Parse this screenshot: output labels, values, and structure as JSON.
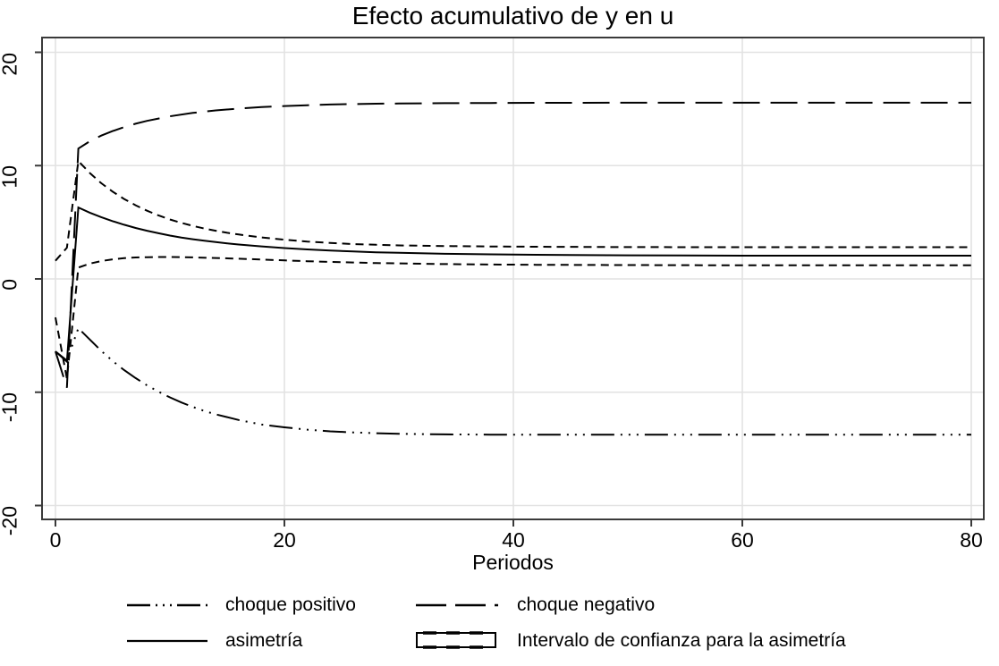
{
  "title": "Efecto acumulativo de y en u",
  "x_axis": {
    "label": "Periodos",
    "ticks": [
      0,
      20,
      40,
      60,
      80
    ],
    "range": [
      0,
      80
    ]
  },
  "y_axis": {
    "ticks": [
      -20,
      -10,
      0,
      10,
      20
    ],
    "range": [
      -20,
      20
    ]
  },
  "colors": {
    "line": "#000000",
    "grid": "#e2e2e2",
    "frame": "#3a3a3a",
    "background": "#ffffff",
    "text": "#000000"
  },
  "legend": [
    {
      "label": "choque positivo",
      "style": "dash_dot_dot"
    },
    {
      "label": "choque negativo",
      "style": "long_dash"
    },
    {
      "label": "asimetría",
      "style": "solid"
    },
    {
      "label": "Intervalo de confianza para la asimetría",
      "style": "ci_box"
    }
  ],
  "chart_data": {
    "type": "line",
    "title": "Efecto acumulativo de y en u",
    "xlabel": "Periodos",
    "ylabel": "",
    "xlim": [
      0,
      80
    ],
    "ylim": [
      -20,
      20
    ],
    "grid": true,
    "legend_position": "bottom",
    "series": [
      {
        "name": "choque positivo",
        "dash": "dash_dot_dot",
        "points": [
          [
            0,
            -6.4
          ],
          [
            1,
            -7.2
          ],
          [
            2,
            -4.35
          ],
          [
            3,
            -5.35
          ],
          [
            4,
            -6.35
          ],
          [
            5,
            -7.25
          ],
          [
            6,
            -8.05
          ],
          [
            7,
            -8.75
          ],
          [
            8,
            -9.4
          ],
          [
            9,
            -9.95
          ],
          [
            10,
            -10.45
          ],
          [
            11,
            -10.9
          ],
          [
            12,
            -11.3
          ],
          [
            13,
            -11.65
          ],
          [
            14,
            -11.95
          ],
          [
            15,
            -12.2
          ],
          [
            16,
            -12.45
          ],
          [
            18,
            -12.85
          ],
          [
            20,
            -13.1
          ],
          [
            22,
            -13.3
          ],
          [
            24,
            -13.45
          ],
          [
            26,
            -13.55
          ],
          [
            28,
            -13.62
          ],
          [
            30,
            -13.67
          ],
          [
            34,
            -13.72
          ],
          [
            38,
            -13.74
          ],
          [
            45,
            -13.75
          ],
          [
            55,
            -13.75
          ],
          [
            65,
            -13.75
          ],
          [
            80,
            -13.75
          ]
        ]
      },
      {
        "name": "choque negativo",
        "dash": "long_dash",
        "points": [
          [
            0,
            -6.4
          ],
          [
            1,
            -9.6
          ],
          [
            2,
            11.5
          ],
          [
            3,
            12.15
          ],
          [
            4,
            12.65
          ],
          [
            5,
            13.05
          ],
          [
            6,
            13.4
          ],
          [
            7,
            13.7
          ],
          [
            8,
            13.95
          ],
          [
            9,
            14.15
          ],
          [
            10,
            14.35
          ],
          [
            12,
            14.65
          ],
          [
            14,
            14.87
          ],
          [
            16,
            15.03
          ],
          [
            18,
            15.16
          ],
          [
            20,
            15.26
          ],
          [
            22,
            15.33
          ],
          [
            24,
            15.39
          ],
          [
            26,
            15.43
          ],
          [
            28,
            15.46
          ],
          [
            30,
            15.48
          ],
          [
            34,
            15.51
          ],
          [
            38,
            15.53
          ],
          [
            42,
            15.54
          ],
          [
            50,
            15.55
          ],
          [
            60,
            15.55
          ],
          [
            70,
            15.55
          ],
          [
            80,
            15.55
          ]
        ]
      },
      {
        "name": "asimetría",
        "dash": "solid",
        "points": [
          [
            0,
            -6.4
          ],
          [
            1,
            -7.3
          ],
          [
            2,
            6.3
          ],
          [
            3,
            5.85
          ],
          [
            4,
            5.45
          ],
          [
            5,
            5.1
          ],
          [
            6,
            4.78
          ],
          [
            7,
            4.5
          ],
          [
            8,
            4.25
          ],
          [
            9,
            4.03
          ],
          [
            10,
            3.83
          ],
          [
            11,
            3.65
          ],
          [
            12,
            3.5
          ],
          [
            13,
            3.37
          ],
          [
            14,
            3.25
          ],
          [
            15,
            3.14
          ],
          [
            16,
            3.04
          ],
          [
            18,
            2.87
          ],
          [
            20,
            2.72
          ],
          [
            22,
            2.6
          ],
          [
            24,
            2.5
          ],
          [
            26,
            2.42
          ],
          [
            28,
            2.35
          ],
          [
            30,
            2.3
          ],
          [
            34,
            2.22
          ],
          [
            38,
            2.17
          ],
          [
            42,
            2.13
          ],
          [
            50,
            2.08
          ],
          [
            60,
            2.05
          ],
          [
            70,
            2.05
          ],
          [
            80,
            2.05
          ]
        ]
      },
      {
        "name": "intervalo de confianza superior",
        "dash": "short_dash",
        "points": [
          [
            0,
            1.6
          ],
          [
            1,
            2.75
          ],
          [
            2,
            10.4
          ],
          [
            3,
            9.35
          ],
          [
            4,
            8.45
          ],
          [
            5,
            7.7
          ],
          [
            6,
            7.05
          ],
          [
            7,
            6.5
          ],
          [
            8,
            6.02
          ],
          [
            9,
            5.6
          ],
          [
            10,
            5.25
          ],
          [
            11,
            4.95
          ],
          [
            12,
            4.68
          ],
          [
            13,
            4.45
          ],
          [
            14,
            4.25
          ],
          [
            15,
            4.07
          ],
          [
            16,
            3.92
          ],
          [
            18,
            3.66
          ],
          [
            20,
            3.46
          ],
          [
            22,
            3.3
          ],
          [
            24,
            3.18
          ],
          [
            26,
            3.08
          ],
          [
            28,
            3.01
          ],
          [
            30,
            2.96
          ],
          [
            34,
            2.9
          ],
          [
            38,
            2.86
          ],
          [
            42,
            2.84
          ],
          [
            50,
            2.81
          ],
          [
            60,
            2.8
          ],
          [
            70,
            2.8
          ],
          [
            80,
            2.8
          ]
        ]
      },
      {
        "name": "intervalo de confianza inferior",
        "dash": "short_dash",
        "points": [
          [
            0,
            -3.4
          ],
          [
            1,
            -8.8
          ],
          [
            2,
            1.0
          ],
          [
            3,
            1.35
          ],
          [
            4,
            1.58
          ],
          [
            5,
            1.73
          ],
          [
            6,
            1.83
          ],
          [
            7,
            1.89
          ],
          [
            8,
            1.92
          ],
          [
            9,
            1.93
          ],
          [
            10,
            1.93
          ],
          [
            12,
            1.9
          ],
          [
            14,
            1.85
          ],
          [
            16,
            1.78
          ],
          [
            18,
            1.71
          ],
          [
            20,
            1.63
          ],
          [
            22,
            1.56
          ],
          [
            24,
            1.5
          ],
          [
            26,
            1.45
          ],
          [
            28,
            1.4
          ],
          [
            30,
            1.37
          ],
          [
            34,
            1.31
          ],
          [
            38,
            1.27
          ],
          [
            42,
            1.25
          ],
          [
            50,
            1.22
          ],
          [
            60,
            1.2
          ],
          [
            70,
            1.2
          ],
          [
            80,
            1.2
          ]
        ]
      }
    ]
  }
}
